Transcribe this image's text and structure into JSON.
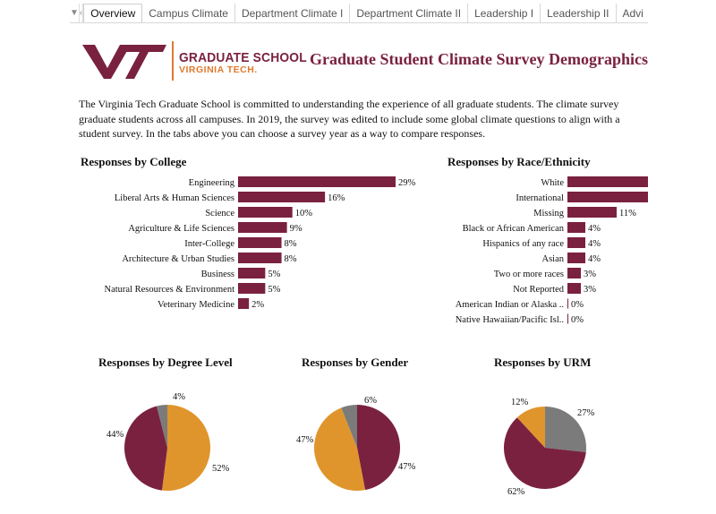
{
  "tabs": [
    {
      "label": "Overview",
      "active": true
    },
    {
      "label": "Campus Climate",
      "active": false
    },
    {
      "label": "Department Climate I",
      "active": false
    },
    {
      "label": "Department Climate II",
      "active": false
    },
    {
      "label": "Leadership I",
      "active": false
    },
    {
      "label": "Leadership II",
      "active": false
    },
    {
      "label": "Advi",
      "active": false
    }
  ],
  "header": {
    "logo_line1": "GRADUATE SCHOOL",
    "logo_line2": "VIRGINIA TECH.",
    "title": "Graduate Student Climate Survey Demographics"
  },
  "intro": [
    "The Virginia Tech Graduate School is committed to understanding the experience of all graduate students. The climate survey",
    "graduate students across all campuses. In 2019, the survey was edited to include some global climate questions to align with a",
    "student survey. In the tabs above you can choose a survey year as a way to compare responses."
  ],
  "colors": {
    "maroon": "#7a2140",
    "orange": "#e0952c",
    "gray": "#7b7b7b"
  },
  "chart_data": [
    {
      "type": "bar",
      "title": "Responses by College",
      "categories": [
        "Engineering",
        "Liberal Arts & Human Sciences",
        "Science",
        "Agriculture & Life Sciences",
        "Inter-College",
        "Architecture & Urban Studies",
        "Business",
        "Natural Resources & Environment",
        "Veterinary Medicine"
      ],
      "values": [
        29,
        16,
        10,
        9,
        8,
        8,
        5,
        5,
        2
      ],
      "labels": [
        "29%",
        "16%",
        "10%",
        "9%",
        "8%",
        "8%",
        "5%",
        "5%",
        "2%"
      ],
      "xmax": 29
    },
    {
      "type": "bar",
      "title": "Responses by Race/Ethnicity",
      "categories": [
        "White",
        "International",
        "Missing",
        "Black or African American",
        "Hispanics of any race",
        "Asian",
        "Two or more races",
        "Not Reported",
        "American Indian or Alaska ..",
        "Native Hawaiian/Pacific Isl.."
      ],
      "values": [
        null,
        null,
        11,
        4,
        4,
        4,
        3,
        3,
        0,
        0
      ],
      "labels": [
        "",
        "",
        "11%",
        "4%",
        "4%",
        "4%",
        "3%",
        "3%",
        "0%",
        "0%"
      ],
      "xmax": 11
    },
    {
      "type": "pie",
      "title": "Responses by Degree Level",
      "slices": [
        {
          "value": 52,
          "label": "52%",
          "color": "#e0952c"
        },
        {
          "value": 44,
          "label": "44%",
          "color": "#7a2140"
        },
        {
          "value": 4,
          "label": "4%",
          "color": "#7b7b7b"
        }
      ]
    },
    {
      "type": "pie",
      "title": "Responses by Gender",
      "slices": [
        {
          "value": 47,
          "label": "47%",
          "color": "#7a2140"
        },
        {
          "value": 47,
          "label": "47%",
          "color": "#e0952c"
        },
        {
          "value": 6,
          "label": "6%",
          "color": "#7b7b7b"
        }
      ]
    },
    {
      "type": "pie",
      "title": "Responses by URM",
      "slices": [
        {
          "value": 27,
          "label": "27%",
          "color": "#7b7b7b"
        },
        {
          "value": 62,
          "label": "62%",
          "color": "#7a2140"
        },
        {
          "value": 12,
          "label": "12%",
          "color": "#e0952c"
        }
      ]
    }
  ]
}
